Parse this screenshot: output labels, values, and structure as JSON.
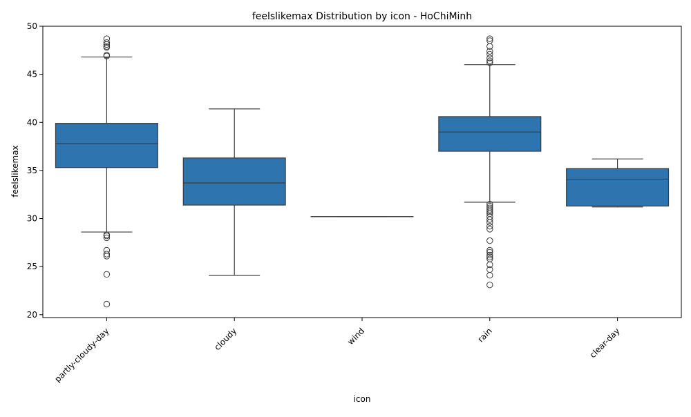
{
  "chart_data": {
    "type": "box",
    "title": "feelslikemax Distribution by icon - HoChiMinh",
    "xlabel": "icon",
    "ylabel": "feelslikemax",
    "ylim": [
      19.7,
      50.0
    ],
    "yticks": [
      20,
      25,
      30,
      35,
      40,
      45,
      50
    ],
    "categories": [
      "partly-cloudy-day",
      "cloudy",
      "wind",
      "rain",
      "clear-day"
    ],
    "box_color": "#2e75b0",
    "line_color": "#3b3b3b",
    "grid": false,
    "boxes": [
      {
        "category": "partly-cloudy-day",
        "whisker_low": 28.6,
        "q1": 35.3,
        "median": 37.8,
        "q3": 39.9,
        "whisker_high": 46.8,
        "outliers": [
          48.7,
          48.3,
          48.1,
          47.9,
          47.8,
          47.0,
          46.9,
          28.3,
          28.2,
          28.0,
          26.7,
          26.3,
          26.1,
          24.2,
          21.1
        ]
      },
      {
        "category": "cloudy",
        "whisker_low": 24.1,
        "q1": 31.4,
        "median": 33.7,
        "q3": 36.3,
        "whisker_high": 41.4,
        "outliers": []
      },
      {
        "category": "wind",
        "whisker_low": 30.2,
        "q1": 30.2,
        "median": 30.2,
        "q3": 30.2,
        "whisker_high": 30.2,
        "outliers": []
      },
      {
        "category": "rain",
        "whisker_low": 31.7,
        "q1": 37.0,
        "median": 39.0,
        "q3": 40.6,
        "whisker_high": 46.0,
        "outliers": [
          48.7,
          48.5,
          47.9,
          47.4,
          47.1,
          46.7,
          46.4,
          46.2,
          31.5,
          31.3,
          31.1,
          30.9,
          30.7,
          30.5,
          30.2,
          29.9,
          29.6,
          29.2,
          28.9,
          27.7,
          26.7,
          26.5,
          26.2,
          26.0,
          25.8,
          25.2,
          24.7,
          24.1,
          23.1
        ]
      },
      {
        "category": "clear-day",
        "whisker_low": 31.2,
        "q1": 31.3,
        "median": 34.1,
        "q3": 35.2,
        "whisker_high": 36.2,
        "outliers": []
      }
    ]
  }
}
